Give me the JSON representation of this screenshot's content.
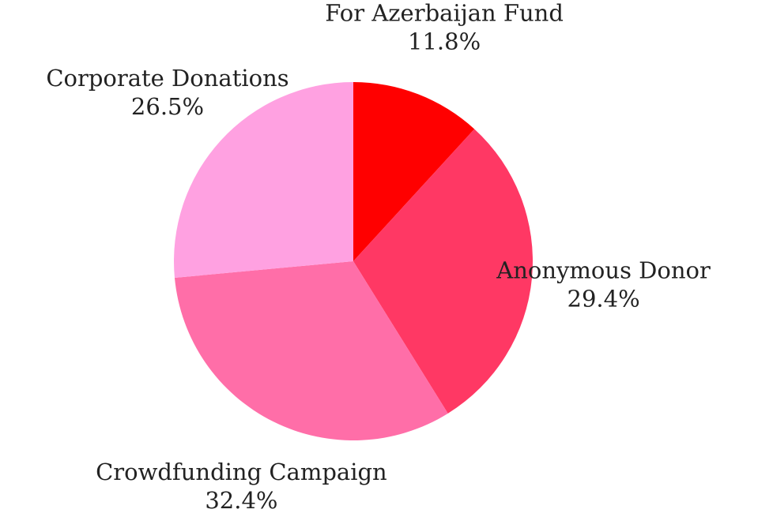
{
  "chart_data": {
    "type": "pie",
    "title": "",
    "slices": [
      {
        "label": "For Azerbaijan Fund",
        "value": 11.8,
        "display": "11.8%",
        "color": "#ff0000"
      },
      {
        "label": "Anonymous Donor",
        "value": 29.4,
        "display": "29.4%",
        "color": "#ff3864"
      },
      {
        "label": "Crowdfunding Campaign",
        "value": 32.4,
        "display": "32.4%",
        "color": "#ff6ea8"
      },
      {
        "label": "Corporate Donations",
        "value": 26.5,
        "display": "26.5%",
        "color": "#ffa1e1"
      }
    ],
    "start_angle": "12 o'clock",
    "direction": "clockwise",
    "legend": "none",
    "label_position": "outside"
  }
}
